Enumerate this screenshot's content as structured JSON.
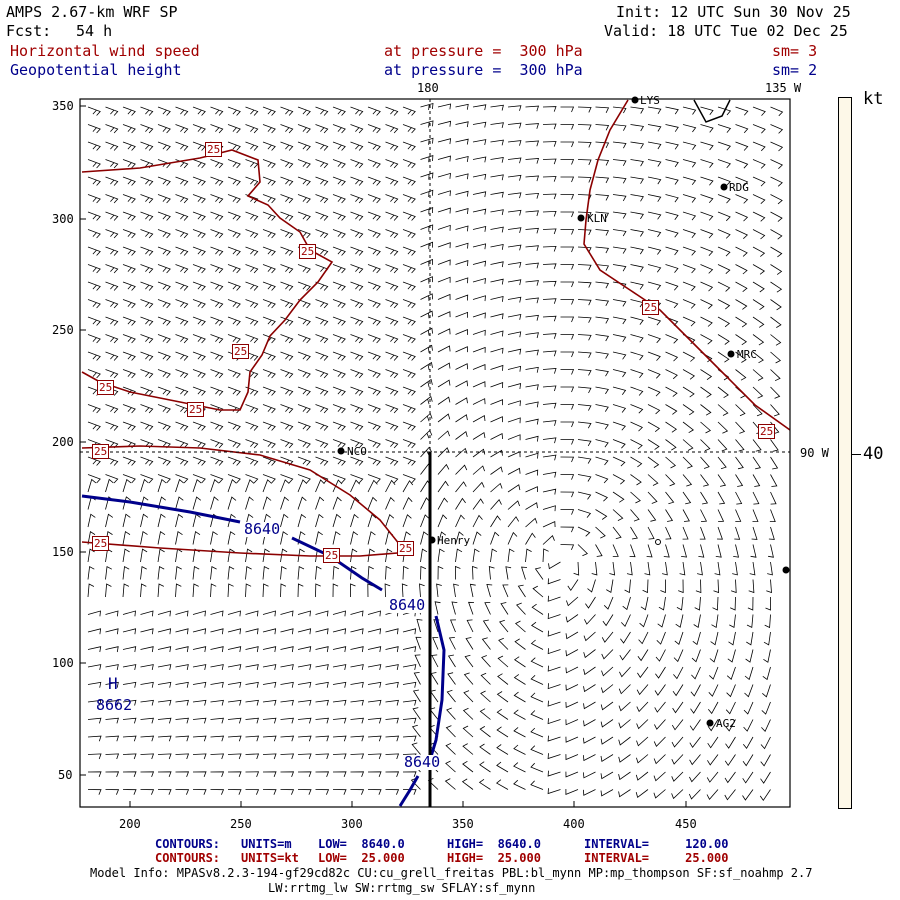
{
  "header": {
    "model": "AMPS 2.67-km WRF SP",
    "fcst_label": "Fcst:",
    "fcst_value": "54 h",
    "init": "Init: 12 UTC Sun 30 Nov 25",
    "valid": "Valid: 18 UTC Tue 02 Dec 25",
    "field1": "Horizontal wind speed",
    "field1_level": "at pressure =  300 hPa",
    "field1_sm": "sm= 3",
    "field2": "Geopotential height",
    "field2_level": "at pressure =  300 hPa",
    "field2_sm": "sm= 2"
  },
  "map": {
    "lon_labels": {
      "top_180": "180",
      "top_135w": "135 W",
      "right_90w": "90 W"
    },
    "x_ticks": [
      "200",
      "250",
      "300",
      "350",
      "400",
      "450"
    ],
    "y_ticks": [
      "350",
      "300",
      "250",
      "200",
      "150",
      "100",
      "50"
    ],
    "stations": [
      "LYS",
      "RDG",
      "KLN",
      "MRC",
      "NCO",
      "Henry",
      "AG2"
    ],
    "contour_labels_height": [
      "8640",
      "8640",
      "8640"
    ],
    "high_marker": {
      "symbol": "H",
      "value": "8662"
    },
    "contour_labels_wind": [
      "25",
      "25",
      "25",
      "25",
      "25",
      "25",
      "25",
      "25",
      "25",
      "25",
      "25"
    ],
    "colors": {
      "height": "#00008b",
      "wind": "#8b0000",
      "grid": "#000000"
    }
  },
  "colorbar": {
    "unit": "kt",
    "value": "40"
  },
  "footer": {
    "line1": {
      "label": "CONTOURS:",
      "units": "UNITS=m",
      "low": "LOW=  8640.0",
      "high": "HIGH=  8640.0",
      "interval": "INTERVAL=     120.00"
    },
    "line2": {
      "label": "CONTOURS:",
      "units": "UNITS=kt",
      "low": "LOW=  25.000",
      "high": "HIGH=  25.000",
      "interval": "INTERVAL=     25.000"
    },
    "info1": "Model Info: MPASv8.2.3-194-gf29cd82c CU:cu_grell_freitas PBL:bl_mynn MP:mp_thompson SF:sf_noahmp 2.7",
    "info2": "LW:rrtmg_lw SW:rrtmg_sw SFLAY:sf_mynn"
  }
}
